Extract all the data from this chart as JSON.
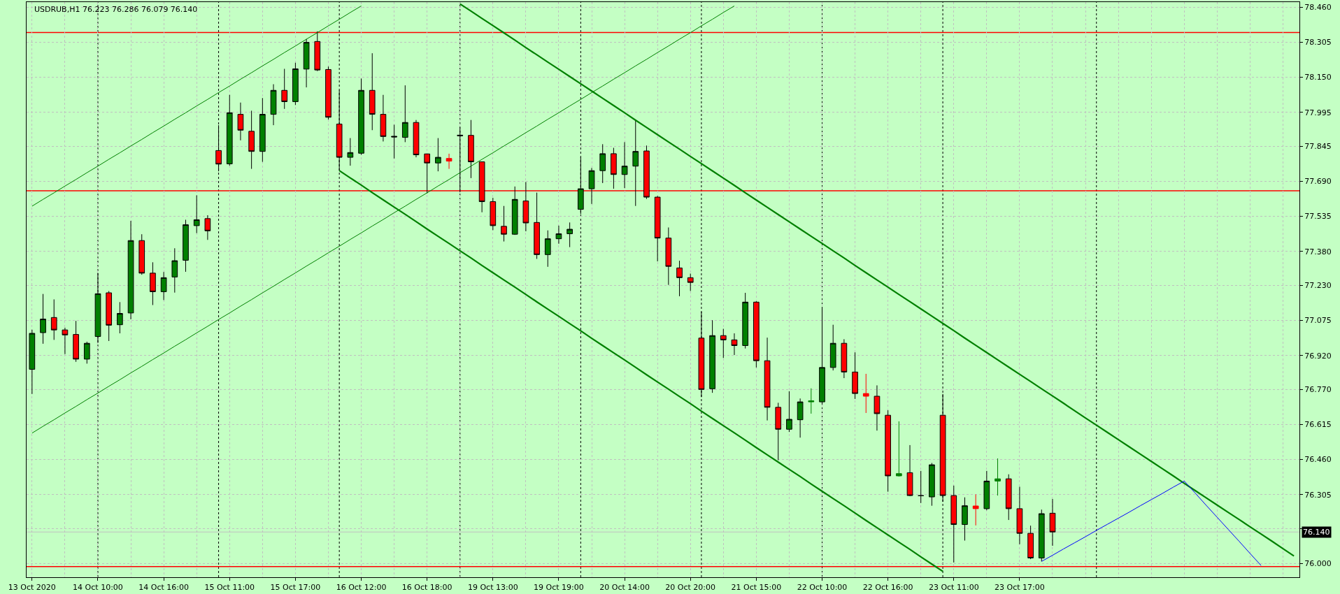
{
  "chart_data": {
    "type": "candlestick",
    "title": "USDRUB,H1 76.223 76.286 76.079 76.140",
    "categories": [
      "13 Oct 2020",
      null,
      null,
      null,
      null,
      null,
      "14 Oct 10:00",
      null,
      null,
      null,
      null,
      null,
      "14 Oct 16:00",
      null,
      null,
      null,
      null,
      null,
      "15 Oct 11:00",
      null,
      null,
      null,
      null,
      null,
      "15 Oct 17:00",
      null,
      null,
      null,
      null,
      null,
      "16 Oct 12:00",
      null,
      null,
      null,
      null,
      null,
      "16 Oct 18:00",
      null,
      null,
      null,
      null,
      null,
      "19 Oct 13:00",
      null,
      null,
      null,
      null,
      null,
      "19 Oct 19:00",
      null,
      null,
      null,
      null,
      null,
      "20 Oct 14:00",
      null,
      null,
      null,
      null,
      null,
      "20 Oct 20:00",
      null,
      null,
      null,
      null,
      null,
      "21 Oct 15:00",
      null,
      null,
      null,
      null,
      null,
      "22 Oct 10:00",
      null,
      null,
      null,
      null,
      null,
      "22 Oct 16:00",
      null,
      null,
      null,
      null,
      null,
      "23 Oct 11:00",
      null,
      null,
      null,
      null,
      null,
      "23 Oct 17:00",
      null,
      null,
      null,
      null,
      null,
      null,
      null,
      null,
      null,
      null,
      null,
      null,
      null,
      null,
      null,
      null,
      null,
      null,
      null,
      null,
      null,
      null,
      null,
      null,
      null
    ],
    "ohlc": [
      [
        76.859,
        77.034,
        76.75,
        77.018
      ],
      [
        77.021,
        77.192,
        76.972,
        77.081
      ],
      [
        77.088,
        77.168,
        76.989,
        77.033
      ],
      [
        77.033,
        77.043,
        76.926,
        77.011
      ],
      [
        77.013,
        77.073,
        76.892,
        76.904
      ],
      [
        76.904,
        76.981,
        76.884,
        76.974
      ],
      [
        77.004,
        77.285,
        76.976,
        77.193
      ],
      [
        77.197,
        77.205,
        76.984,
        77.054
      ],
      [
        77.056,
        77.156,
        77.018,
        77.106
      ],
      [
        77.108,
        77.515,
        77.08,
        77.428
      ],
      [
        77.428,
        77.456,
        77.277,
        77.284
      ],
      [
        77.284,
        77.332,
        77.143,
        77.202
      ],
      [
        77.202,
        77.289,
        77.165,
        77.264
      ],
      [
        77.267,
        77.394,
        77.198,
        77.339
      ],
      [
        77.341,
        77.52,
        77.29,
        77.498
      ],
      [
        77.494,
        77.628,
        77.461,
        77.52
      ],
      [
        77.525,
        77.54,
        77.431,
        77.471
      ],
      [
        77.826,
        77.938,
        77.734,
        77.766
      ],
      [
        77.767,
        78.072,
        77.759,
        77.993
      ],
      [
        77.986,
        78.038,
        77.871,
        77.916
      ],
      [
        77.911,
        78.002,
        77.745,
        77.822
      ],
      [
        77.822,
        78.058,
        77.776,
        77.986
      ],
      [
        77.986,
        78.119,
        77.938,
        78.092
      ],
      [
        78.092,
        78.187,
        78.01,
        78.042
      ],
      [
        78.042,
        78.214,
        78.027,
        78.187
      ],
      [
        78.186,
        78.319,
        78.105,
        78.304
      ],
      [
        78.308,
        78.353,
        78.177,
        78.182
      ],
      [
        78.184,
        78.197,
        77.963,
        77.973
      ],
      [
        77.943,
        78.092,
        77.737,
        77.796
      ],
      [
        77.796,
        77.881,
        77.759,
        77.817
      ],
      [
        77.814,
        78.144,
        77.807,
        78.092
      ],
      [
        78.092,
        78.256,
        77.916,
        77.986
      ],
      [
        77.986,
        78.072,
        77.866,
        77.888
      ],
      [
        77.889,
        77.94,
        77.791,
        77.886
      ],
      [
        77.884,
        78.114,
        77.863,
        77.95
      ],
      [
        77.95,
        77.961,
        77.796,
        77.807
      ],
      [
        77.811,
        77.812,
        77.637,
        77.771
      ],
      [
        77.771,
        77.881,
        77.734,
        77.796
      ],
      [
        77.791,
        77.812,
        77.745,
        77.779
      ],
      [
        77.894,
        77.928,
        77.642,
        77.891
      ],
      [
        77.893,
        77.961,
        77.704,
        77.776
      ],
      [
        77.776,
        77.776,
        77.553,
        77.6
      ],
      [
        77.6,
        77.617,
        77.474,
        77.494
      ],
      [
        77.491,
        77.581,
        77.424,
        77.456
      ],
      [
        77.456,
        77.667,
        77.453,
        77.61
      ],
      [
        77.603,
        77.687,
        77.469,
        77.506
      ],
      [
        77.508,
        77.64,
        77.347,
        77.366
      ],
      [
        77.366,
        77.473,
        77.312,
        77.436
      ],
      [
        77.436,
        77.494,
        77.414,
        77.458
      ],
      [
        77.458,
        77.508,
        77.399,
        77.478
      ],
      [
        77.566,
        77.796,
        77.545,
        77.657
      ],
      [
        77.657,
        77.749,
        77.59,
        77.737
      ],
      [
        77.737,
        77.854,
        77.682,
        77.812
      ],
      [
        77.812,
        77.838,
        77.657,
        77.72
      ],
      [
        77.72,
        77.863,
        77.66,
        77.757
      ],
      [
        77.757,
        77.961,
        77.581,
        77.822
      ],
      [
        77.824,
        77.848,
        77.612,
        77.62
      ],
      [
        77.62,
        77.625,
        77.336,
        77.439
      ],
      [
        77.439,
        77.486,
        77.232,
        77.314
      ],
      [
        77.307,
        77.339,
        77.182,
        77.264
      ],
      [
        77.264,
        77.282,
        77.205,
        77.243
      ],
      [
        76.997,
        77.113,
        76.736,
        76.77
      ],
      [
        76.773,
        77.076,
        76.755,
        77.008
      ],
      [
        77.008,
        77.038,
        76.909,
        76.989
      ],
      [
        76.989,
        77.018,
        76.922,
        76.964
      ],
      [
        76.964,
        77.197,
        76.951,
        77.156
      ],
      [
        77.156,
        77.16,
        76.867,
        76.897
      ],
      [
        76.897,
        76.999,
        76.633,
        76.691
      ],
      [
        76.691,
        76.711,
        76.457,
        76.594
      ],
      [
        76.594,
        76.762,
        76.582,
        76.638
      ],
      [
        76.636,
        76.73,
        76.557,
        76.715
      ],
      [
        76.715,
        76.775,
        76.663,
        76.72
      ],
      [
        76.715,
        77.131,
        76.703,
        76.867
      ],
      [
        76.867,
        77.056,
        76.854,
        76.974
      ],
      [
        76.974,
        76.992,
        76.82,
        76.847
      ],
      [
        76.847,
        76.934,
        76.728,
        76.752
      ],
      [
        76.752,
        76.839,
        76.666,
        76.74
      ],
      [
        76.74,
        76.788,
        76.588,
        76.663
      ],
      [
        76.656,
        76.678,
        76.318,
        76.388
      ],
      [
        76.388,
        76.629,
        76.385,
        76.398
      ],
      [
        76.402,
        76.524,
        76.298,
        76.301
      ],
      [
        76.301,
        76.41,
        76.268,
        76.3
      ],
      [
        76.295,
        76.445,
        76.256,
        76.437
      ],
      [
        76.656,
        76.75,
        76.273,
        76.301
      ],
      [
        76.301,
        76.345,
        76.005,
        76.173
      ],
      [
        76.173,
        76.293,
        76.102,
        76.256
      ],
      [
        76.255,
        76.306,
        76.169,
        76.243
      ],
      [
        76.243,
        76.41,
        76.236,
        76.365
      ],
      [
        76.365,
        76.465,
        76.301,
        76.375
      ],
      [
        76.375,
        76.395,
        76.193,
        76.243
      ],
      [
        76.243,
        76.34,
        76.086,
        76.134
      ],
      [
        76.134,
        76.168,
        76.02,
        76.025
      ],
      [
        76.025,
        76.239,
        76.01,
        76.221
      ],
      [
        76.223,
        76.286,
        76.079,
        76.14
      ],
      null,
      null,
      null,
      null,
      null,
      null,
      null,
      null,
      null,
      null,
      null,
      null,
      null,
      null,
      null,
      null,
      null,
      null,
      null,
      null,
      null,
      null
    ],
    "colors": [
      "#008000",
      "#008000",
      "#ff0000",
      "#ff0000",
      "#ff0000",
      "#008000",
      "#008000",
      "#ff0000",
      "#008000",
      "#008000",
      "#ff0000",
      "#ff0000",
      "#008000",
      "#008000",
      "#008000",
      "#008000",
      "#ff0000",
      "#ff0000",
      "#008000",
      "#ff0000",
      "#ff0000",
      "#008000",
      "#008000",
      "#ff0000",
      "#008000",
      "#008000",
      "#ff0000",
      "#ff0000",
      "#ff0000",
      "#008000",
      "#008000",
      "#ff0000",
      "#ff0000",
      "#000000",
      "#008000",
      "#ff0000",
      "#ff0000",
      "#008000",
      "#ff0000",
      "#000000",
      "#ff0000",
      "#ff0000",
      "#ff0000",
      "#ff0000",
      "#008000",
      "#ff0000",
      "#ff0000",
      "#008000",
      "#008000",
      "#008000",
      "#008000",
      "#008000",
      "#008000",
      "#ff0000",
      "#008000",
      "#008000",
      "#ff0000",
      "#ff0000",
      "#ff0000",
      "#ff0000",
      "#ff0000",
      "#ff0000",
      "#008000",
      "#ff0000",
      "#ff0000",
      "#008000",
      "#ff0000",
      "#ff0000",
      "#ff0000",
      "#008000",
      "#008000",
      "#008000",
      "#008000",
      "#008000",
      "#ff0000",
      "#ff0000",
      "#ff0000",
      "#ff0000",
      "#ff0000",
      "#008000",
      "#ff0000",
      "#000000",
      "#008000",
      "#ff0000",
      "#ff0000",
      "#008000",
      "#ff0000",
      "#008000",
      "#008000",
      "#ff0000",
      "#ff0000",
      "#ff0000",
      "#008000",
      "#ff0000",
      null,
      null,
      null,
      null,
      null,
      null,
      null,
      null,
      null,
      null,
      null,
      null,
      null,
      null,
      null,
      null,
      null,
      null,
      null,
      null,
      null,
      null
    ],
    "series": [
      {
        "type": "line",
        "color": "#008000",
        "values": [
          77.58,
          77.61,
          77.639,
          77.669,
          77.698,
          77.728,
          77.757,
          77.787,
          77.816,
          77.846,
          77.875,
          77.905,
          77.934,
          77.964,
          77.993,
          78.023,
          78.052,
          78.082,
          78.111,
          78.141,
          78.17,
          78.2,
          78.229,
          78.259,
          78.288,
          78.318,
          78.347,
          78.377,
          78.406,
          78.436,
          78.465,
          null,
          null,
          null,
          null,
          null,
          null,
          null,
          null,
          null,
          null,
          null,
          null,
          null,
          null,
          null,
          null,
          null,
          null,
          null,
          null,
          null,
          null,
          null,
          null,
          null,
          null,
          null,
          null,
          null,
          null,
          null,
          null,
          null,
          null,
          null,
          null,
          null,
          null,
          null,
          null,
          null,
          null,
          null,
          null,
          null,
          null,
          null,
          null,
          null,
          null,
          null,
          null,
          null,
          null,
          null,
          null,
          null,
          null,
          null,
          null,
          null,
          null,
          null,
          null,
          null,
          null,
          null,
          null,
          null,
          null,
          null,
          null,
          null,
          null,
          null,
          null,
          null,
          null,
          null,
          null,
          null,
          null,
          null,
          null,
          null
        ]
      },
      {
        "type": "line",
        "color": "#008000",
        "values": [
          76.577,
          76.607,
          76.636,
          76.666,
          76.695,
          76.725,
          76.754,
          76.784,
          76.813,
          76.843,
          76.872,
          76.902,
          76.931,
          76.961,
          76.99,
          77.02,
          77.049,
          77.079,
          77.108,
          77.138,
          77.167,
          77.197,
          77.226,
          77.256,
          77.285,
          77.315,
          77.344,
          77.374,
          77.403,
          77.433,
          77.462,
          77.492,
          77.521,
          77.551,
          77.58,
          77.61,
          77.639,
          77.669,
          77.698,
          77.728,
          77.757,
          77.787,
          77.816,
          77.846,
          77.875,
          77.905,
          77.934,
          77.964,
          77.993,
          78.023,
          78.052,
          78.082,
          78.111,
          78.141,
          78.17,
          78.2,
          78.229,
          78.259,
          78.288,
          78.318,
          78.347,
          78.377,
          78.406,
          78.436,
          78.465,
          null,
          null,
          null,
          null,
          null,
          null,
          null,
          null,
          null,
          null,
          null,
          null,
          null,
          null,
          null,
          null,
          null,
          null,
          null,
          null,
          null,
          null,
          null,
          null,
          null,
          null,
          null,
          null,
          null,
          null,
          null,
          null,
          null,
          null,
          null,
          null,
          null,
          null,
          null,
          null,
          null,
          null,
          null,
          null,
          null,
          null,
          null,
          null,
          null,
          null,
          null
        ]
      },
      {
        "type": "line",
        "color": "#008000",
        "values": [
          null,
          null,
          null,
          null,
          null,
          null,
          null,
          null,
          null,
          null,
          null,
          null,
          null,
          null,
          null,
          null,
          null,
          null,
          null,
          null,
          null,
          null,
          null,
          null,
          null,
          null,
          null,
          null,
          null,
          null,
          null,
          null,
          null,
          null,
          null,
          null,
          null,
          null,
          null,
          78.474,
          78.442,
          78.41,
          78.378,
          78.346,
          78.314,
          78.281,
          78.249,
          78.217,
          78.185,
          78.153,
          78.121,
          78.089,
          78.057,
          78.025,
          77.993,
          77.96,
          77.928,
          77.896,
          77.864,
          77.832,
          77.8,
          77.768,
          77.736,
          77.704,
          77.672,
          77.639,
          77.607,
          77.575,
          77.543,
          77.511,
          77.479,
          77.447,
          77.415,
          77.383,
          77.351,
          77.318,
          77.286,
          77.254,
          77.222,
          77.19,
          77.158,
          77.126,
          77.094,
          77.062,
          77.03,
          76.997,
          76.965,
          76.933,
          76.901,
          76.869,
          76.837,
          76.805,
          76.773,
          76.741,
          76.709,
          76.676,
          76.644,
          76.612,
          76.58,
          76.548,
          76.516,
          76.484,
          76.452,
          76.42,
          76.388,
          76.355,
          76.323,
          76.291,
          76.259,
          76.227,
          76.195,
          76.163,
          76.131,
          76.099,
          76.066,
          76.034
        ]
      },
      {
        "type": "line",
        "color": "#008000",
        "values": [
          null,
          null,
          null,
          null,
          null,
          null,
          null,
          null,
          null,
          null,
          null,
          null,
          null,
          null,
          null,
          null,
          null,
          null,
          null,
          null,
          null,
          null,
          null,
          null,
          null,
          null,
          null,
          null,
          77.737,
          77.705,
          77.673,
          77.64,
          77.608,
          77.576,
          77.544,
          77.512,
          77.479,
          77.447,
          77.415,
          77.383,
          77.351,
          77.318,
          77.286,
          77.254,
          77.222,
          77.19,
          77.157,
          77.125,
          77.093,
          77.061,
          77.029,
          76.996,
          76.964,
          76.932,
          76.9,
          76.868,
          76.835,
          76.803,
          76.771,
          76.739,
          76.707,
          76.674,
          76.642,
          76.61,
          76.578,
          76.546,
          76.513,
          76.481,
          76.449,
          76.417,
          76.385,
          76.352,
          76.32,
          76.288,
          76.256,
          76.224,
          76.191,
          76.159,
          76.127,
          76.095,
          76.063,
          76.03,
          75.998,
          75.966,
          null,
          null,
          null,
          null,
          null,
          null,
          null,
          null,
          null,
          null,
          null,
          null,
          null,
          null,
          null,
          null,
          null,
          null,
          null,
          null,
          null,
          null,
          null,
          null,
          null,
          null,
          null,
          null,
          null,
          null,
          null,
          null
        ]
      },
      {
        "type": "line",
        "color": "#0000ff",
        "values": [
          null,
          null,
          null,
          null,
          null,
          null,
          null,
          null,
          null,
          null,
          null,
          null,
          null,
          null,
          null,
          null,
          null,
          null,
          null,
          null,
          null,
          null,
          null,
          null,
          null,
          null,
          null,
          null,
          null,
          null,
          null,
          null,
          null,
          null,
          null,
          null,
          null,
          null,
          null,
          null,
          null,
          null,
          null,
          null,
          null,
          null,
          null,
          null,
          null,
          null,
          null,
          null,
          null,
          null,
          null,
          null,
          null,
          null,
          null,
          null,
          null,
          null,
          null,
          null,
          null,
          null,
          null,
          null,
          null,
          null,
          null,
          null,
          null,
          null,
          null,
          null,
          null,
          null,
          null,
          null,
          null,
          null,
          null,
          null,
          null,
          null,
          null,
          null,
          null,
          null,
          null,
          null,
          76.01,
          76.037,
          76.065,
          76.092,
          76.119,
          76.147,
          76.174,
          76.201,
          76.228,
          76.256,
          76.283,
          76.31,
          76.338,
          76.365,
          76.312,
          76.258,
          76.205,
          76.152,
          76.099,
          76.045,
          75.992,
          null,
          null,
          null
        ]
      }
    ],
    "ref_lines": [
      {
        "axis": "y",
        "value": 78.348,
        "color": "#ff0000"
      },
      {
        "axis": "y",
        "value": 77.648,
        "color": "#ff0000"
      },
      {
        "axis": "y",
        "value": 75.987,
        "color": "#ff0000"
      },
      {
        "axis": "y",
        "value": 76.14,
        "label": "76.140",
        "color": "#c0c0c0"
      }
    ],
    "ylim": [
      75.94,
      78.482
    ],
    "yticks": [
      {
        "value": 78.46,
        "label": "78.460"
      },
      78.305,
      {
        "value": 78.15,
        "label": "78.150"
      },
      77.995,
      77.845,
      {
        "value": 77.69,
        "label": "77.690"
      },
      77.535,
      {
        "value": 77.38,
        "label": "77.380"
      },
      {
        "value": 77.23,
        "label": "77.230"
      },
      77.075,
      {
        "value": 76.92,
        "label": "76.920"
      },
      {
        "value": 76.77,
        "label": "76.770"
      },
      76.615,
      {
        "value": 76.46,
        "label": "76.460"
      },
      76.305,
      {
        "value": 76.155,
        "label": null
      },
      {
        "value": 76.0,
        "label": "76.000"
      }
    ],
    "grid": true
  }
}
